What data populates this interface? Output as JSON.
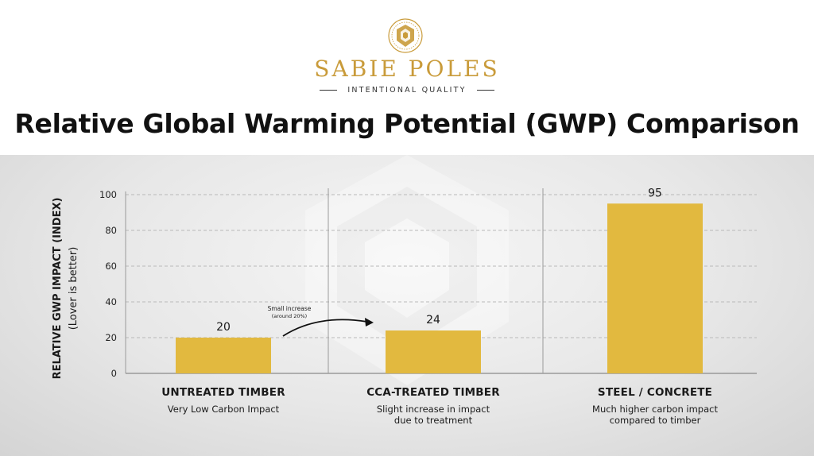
{
  "brand": {
    "name": "SABIE POLES",
    "tagline": "INTENTIONAL QUALITY",
    "emblem_icon": "sabie-poles-emblem",
    "accent_color": "#c99b3a"
  },
  "title": "Relative Global Warming Potential (GWP) Comparison",
  "chart_data": {
    "type": "bar",
    "categories": [
      "UNTREATED TIMBER",
      "CCA-TREATED TIMBER",
      "STEEL / CONCRETE"
    ],
    "category_descriptions": [
      "Very Low Carbon Impact",
      "Slight increase in impact\ndue to treatment",
      "Much higher carbon impact\ncompared to timber"
    ],
    "values": [
      20,
      24,
      95
    ],
    "data_labels": [
      "20",
      "24",
      "95"
    ],
    "ylabel": "RELATIVE GWP IMPACT (INDEX)",
    "ylabel_sub": "(Lover is better)",
    "ylim": [
      0,
      100
    ],
    "yticks": [
      "0",
      "20",
      "40",
      "60",
      "80",
      "100"
    ],
    "grid": true,
    "bar_color": "#e2b93f",
    "annotation": {
      "text_line1": "Small increase",
      "text_line2": "(around 20%)",
      "from_category": "UNTREATED TIMBER",
      "to_category": "CCA-TREATED TIMBER"
    }
  }
}
